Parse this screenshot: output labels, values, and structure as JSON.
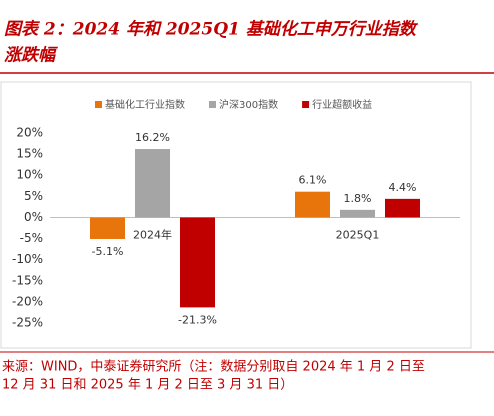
{
  "header": {
    "title_lines": [
      "图表 2：2024 年和 2025Q1 基础化工申万行业指数",
      "涨跌幅"
    ]
  },
  "chart_data": {
    "type": "bar",
    "categories": [
      "2024年",
      "2025Q1"
    ],
    "series": [
      {
        "name": "基础化工行业指数",
        "color": "#e8740c",
        "values": [
          -5.1,
          6.1
        ],
        "value_labels": [
          "-5.1%",
          "6.1%"
        ]
      },
      {
        "name": "沪深300指数",
        "color": "#a5a5a5",
        "values": [
          16.2,
          1.8
        ],
        "value_labels": [
          "16.2%",
          "1.8%"
        ]
      },
      {
        "name": "行业超额收益",
        "color": "#c00000",
        "values": [
          -21.3,
          4.4
        ],
        "value_labels": [
          "-21.3%",
          "4.4%"
        ]
      }
    ],
    "ylim": [
      -25,
      20
    ],
    "yticks": [
      {
        "value": 20,
        "label": "20%"
      },
      {
        "value": 15,
        "label": "15%"
      },
      {
        "value": 10,
        "label": "10%"
      },
      {
        "value": 5,
        "label": "5%"
      },
      {
        "value": 0,
        "label": "0%"
      },
      {
        "value": -5,
        "label": "-5%"
      },
      {
        "value": -10,
        "label": "-10%"
      },
      {
        "value": -15,
        "label": "-15%"
      },
      {
        "value": -20,
        "label": "-20%"
      },
      {
        "value": -25,
        "label": "-25%"
      }
    ],
    "legend": "top",
    "grid": false
  },
  "source": [
    "来源：WIND，中泰证券研究所（注：数据分别取自 2024 年 1 月 2 日至",
    "12 月 31 日和 2025 年 1 月 2 日至 3 月 31 日）"
  ]
}
